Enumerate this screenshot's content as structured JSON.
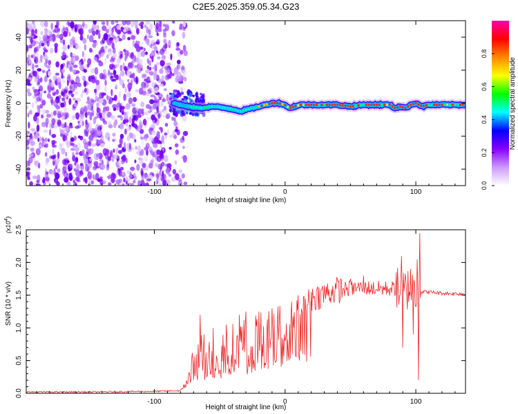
{
  "title": "C2E5.2025.359.05.34.G23",
  "chart_data": [
    {
      "type": "heatmap",
      "name": "spectrogram",
      "xlabel": "Height of straight line (km)",
      "ylabel": "Frequency (Hz)",
      "xlim": [
        -198,
        138
      ],
      "ylim": [
        -50,
        50
      ],
      "xticks": [
        -100,
        0,
        100
      ],
      "xtick_labels": [
        "-100",
        "0",
        "100"
      ],
      "yticks": [
        -40,
        -20,
        0,
        20,
        40
      ],
      "ytick_labels": [
        "-40",
        "-20",
        "0",
        "20",
        "40"
      ],
      "noise_region_x": [
        -198,
        -82
      ],
      "ridge": {
        "x": [
          -85,
          -75,
          -65,
          -55,
          -45,
          -38,
          -34,
          -30,
          -25,
          -20,
          -15,
          -10,
          -5,
          0,
          3,
          7,
          12,
          20,
          30,
          40,
          50,
          60,
          70,
          80,
          84,
          88,
          92,
          96,
          100,
          105,
          110,
          120,
          138
        ],
        "y": [
          0,
          -2,
          -3,
          -2,
          -3,
          -4,
          -5,
          -4,
          -3,
          -2,
          -1,
          0,
          0,
          -1,
          -3,
          -2,
          -1,
          -1,
          -1,
          -1,
          -2,
          -1,
          -1,
          -1,
          -3,
          -2,
          -3,
          -1,
          0,
          -2,
          -1,
          -1,
          -1
        ]
      },
      "colorbar": {
        "label": "Normalized spectral amplitude",
        "ticks": [
          0.0,
          0.2,
          0.4,
          0.6,
          0.8
        ],
        "tick_labels": [
          "0.0",
          "0.2",
          "0.4",
          "0.6",
          "0.8"
        ],
        "colors": [
          "#ffffff",
          "#cc99ff",
          "#8800ff",
          "#0000ff",
          "#00ffff",
          "#00ff00",
          "#ffff00",
          "#ff8800",
          "#ff0000",
          "#ff00aa"
        ]
      }
    },
    {
      "type": "line",
      "name": "snr",
      "xlabel": "Height of straight line (km)",
      "ylabel": "SNR (10 * v/v)",
      "scale_label": "(x10",
      "scale_exponent": "4",
      "scale_close": ")",
      "xlim": [
        -198,
        138
      ],
      "ylim": [
        0,
        2.5
      ],
      "xticks": [
        -100,
        0,
        100
      ],
      "xtick_labels": [
        "-100",
        "0",
        "100"
      ],
      "yticks": [
        0.0,
        0.5,
        1.0,
        1.5,
        2.0,
        2.5
      ],
      "ytick_labels": [
        "0.0",
        "0.5",
        "1.0",
        "1.5",
        "2.0",
        "2.5"
      ],
      "color": "#ee2222",
      "envelope": {
        "x": [
          -198,
          -150,
          -100,
          -80,
          -75,
          -70,
          -65,
          -60,
          -55,
          -50,
          -45,
          -40,
          -35,
          -30,
          -25,
          -20,
          -15,
          -10,
          -5,
          0,
          5,
          10,
          15,
          20,
          30,
          40,
          50,
          60,
          70,
          80,
          85,
          88,
          90,
          95,
          100,
          102,
          104,
          110,
          120,
          138
        ],
        "y": [
          0.02,
          0.02,
          0.03,
          0.04,
          0.15,
          0.45,
          0.6,
          0.55,
          0.5,
          0.62,
          0.7,
          0.75,
          0.78,
          0.82,
          0.85,
          0.88,
          0.9,
          0.95,
          1.0,
          1.1,
          1.2,
          1.3,
          1.35,
          1.45,
          1.52,
          1.58,
          1.6,
          1.62,
          1.6,
          1.6,
          1.6,
          1.55,
          1.58,
          1.6,
          1.58,
          1.7,
          1.55,
          1.55,
          1.53,
          1.52
        ]
      },
      "spikes": {
        "x": [
          -65,
          -62,
          -55,
          -45,
          -35,
          -30,
          -20,
          -10,
          5,
          10,
          12,
          20,
          50,
          60,
          85,
          89,
          90,
          96,
          98,
          101,
          102,
          103
        ],
        "y": [
          1.2,
          0.9,
          1.0,
          1.05,
          1.2,
          1.25,
          1.25,
          1.3,
          1.4,
          1.5,
          0.65,
          1.55,
          1.75,
          1.8,
          1.85,
          2.1,
          0.7,
          1.9,
          0.9,
          2.05,
          0.2,
          2.45
        ]
      }
    }
  ]
}
